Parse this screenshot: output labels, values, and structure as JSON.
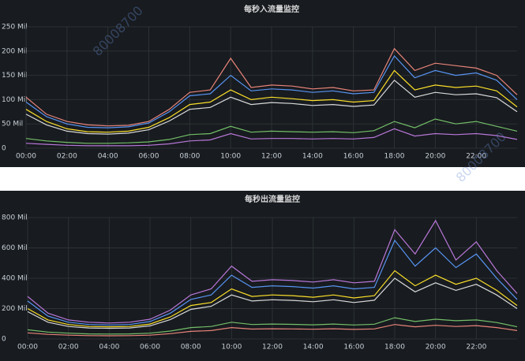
{
  "chart_data": [
    {
      "type": "line",
      "title": "每秒入流量监控",
      "x": [
        0,
        1,
        2,
        3,
        4,
        5,
        6,
        7,
        8,
        9,
        10,
        11,
        12,
        13,
        14,
        15,
        16,
        17,
        18,
        19,
        20,
        21,
        22,
        23,
        24
      ],
      "xlim": [
        0,
        24
      ],
      "xticks": [
        {
          "value": 0,
          "label": "00:00"
        },
        {
          "value": 2,
          "label": "02:00"
        },
        {
          "value": 4,
          "label": "04:00"
        },
        {
          "value": 6,
          "label": "06:00"
        },
        {
          "value": 8,
          "label": "08:00"
        },
        {
          "value": 10,
          "label": "10:00"
        },
        {
          "value": 12,
          "label": "12:00"
        },
        {
          "value": 14,
          "label": "14:00"
        },
        {
          "value": 16,
          "label": "16:00"
        },
        {
          "value": 18,
          "label": "18:00"
        },
        {
          "value": 20,
          "label": "20:00"
        },
        {
          "value": 22,
          "label": "22:00"
        }
      ],
      "ylim": [
        0,
        250
      ],
      "yticks": [
        0,
        {
          "value": 50,
          "label": "50 Mil"
        },
        {
          "value": 100,
          "label": "100 Mil"
        },
        {
          "value": 150,
          "label": "150 Mil"
        },
        {
          "value": 200,
          "label": "200 Mil"
        },
        {
          "value": 250,
          "label": "250 Mil"
        }
      ],
      "grid": true,
      "series": [
        {
          "color": "#e8847a",
          "values": [
            105,
            70,
            55,
            48,
            46,
            47,
            55,
            80,
            115,
            120,
            185,
            125,
            130,
            128,
            122,
            125,
            118,
            120,
            205,
            160,
            175,
            170,
            165,
            150,
            110
          ]
        },
        {
          "color": "#5794f2",
          "values": [
            95,
            65,
            50,
            43,
            42,
            44,
            52,
            75,
            108,
            112,
            150,
            118,
            122,
            120,
            115,
            118,
            112,
            115,
            190,
            145,
            160,
            150,
            155,
            140,
            100
          ]
        },
        {
          "color": "#fade2a",
          "values": [
            80,
            55,
            40,
            34,
            33,
            35,
            43,
            63,
            90,
            95,
            120,
            100,
            105,
            102,
            98,
            100,
            95,
            98,
            160,
            120,
            130,
            125,
            128,
            118,
            85
          ]
        },
        {
          "color": "#d8d9da",
          "values": [
            70,
            48,
            35,
            30,
            29,
            31,
            38,
            56,
            80,
            84,
            105,
            90,
            94,
            92,
            88,
            90,
            86,
            89,
            140,
            105,
            115,
            110,
            112,
            104,
            75
          ]
        },
        {
          "color": "#73bf69",
          "values": [
            20,
            15,
            12,
            10,
            10,
            11,
            13,
            18,
            28,
            30,
            45,
            33,
            35,
            34,
            33,
            34,
            32,
            36,
            55,
            42,
            60,
            50,
            55,
            45,
            35
          ]
        },
        {
          "color": "#b877d9",
          "values": [
            10,
            8,
            6,
            5,
            5,
            5,
            6,
            9,
            15,
            17,
            30,
            19,
            20,
            20,
            19,
            20,
            19,
            22,
            40,
            25,
            30,
            28,
            30,
            26,
            18
          ]
        }
      ]
    },
    {
      "type": "line",
      "title": "每秒出流量监控",
      "x": [
        0,
        1,
        2,
        3,
        4,
        5,
        6,
        7,
        8,
        9,
        10,
        11,
        12,
        13,
        14,
        15,
        16,
        17,
        18,
        19,
        20,
        21,
        22,
        23,
        24
      ],
      "xlim": [
        0,
        24
      ],
      "xticks": [
        {
          "value": 0,
          "label": "00:00"
        },
        {
          "value": 2,
          "label": "02:00"
        },
        {
          "value": 4,
          "label": "04:00"
        },
        {
          "value": 6,
          "label": "06:00"
        },
        {
          "value": 8,
          "label": "08:00"
        },
        {
          "value": 10,
          "label": "10:00"
        },
        {
          "value": 12,
          "label": "12:00"
        },
        {
          "value": 14,
          "label": "14:00"
        },
        {
          "value": 16,
          "label": "16:00"
        },
        {
          "value": 18,
          "label": "18:00"
        },
        {
          "value": 20,
          "label": "20:00"
        },
        {
          "value": 22,
          "label": "22:00"
        }
      ],
      "ylim": [
        0,
        800
      ],
      "yticks": [
        0,
        {
          "value": 200,
          "label": "200 Mil"
        },
        {
          "value": 400,
          "label": "400 Mil"
        },
        {
          "value": 600,
          "label": "600 Mil"
        },
        {
          "value": 800,
          "label": "800 Mil"
        }
      ],
      "grid": true,
      "series": [
        {
          "color": "#b877d9",
          "values": [
            280,
            170,
            125,
            110,
            105,
            110,
            130,
            190,
            290,
            330,
            480,
            380,
            390,
            385,
            375,
            390,
            370,
            380,
            720,
            560,
            780,
            520,
            640,
            450,
            300
          ]
        },
        {
          "color": "#5794f2",
          "values": [
            250,
            150,
            110,
            95,
            92,
            95,
            115,
            170,
            260,
            290,
            420,
            340,
            350,
            345,
            335,
            350,
            330,
            340,
            650,
            480,
            600,
            470,
            560,
            400,
            260
          ]
        },
        {
          "color": "#fade2a",
          "values": [
            200,
            125,
            95,
            82,
            80,
            82,
            98,
            145,
            220,
            240,
            330,
            280,
            290,
            285,
            275,
            290,
            270,
            285,
            450,
            350,
            420,
            360,
            400,
            320,
            220
          ]
        },
        {
          "color": "#d8d9da",
          "values": [
            180,
            110,
            82,
            72,
            70,
            72,
            86,
            128,
            195,
            215,
            290,
            250,
            258,
            254,
            245,
            258,
            240,
            255,
            400,
            310,
            370,
            320,
            360,
            290,
            200
          ]
        },
        {
          "color": "#73bf69",
          "values": [
            60,
            45,
            38,
            33,
            32,
            33,
            38,
            52,
            75,
            82,
            110,
            95,
            98,
            96,
            93,
            98,
            92,
            97,
            140,
            115,
            130,
            120,
            125,
            108,
            80
          ]
        },
        {
          "color": "#e8847a",
          "values": [
            40,
            30,
            25,
            22,
            21,
            22,
            25,
            35,
            50,
            55,
            75,
            65,
            67,
            66,
            64,
            67,
            63,
            66,
            95,
            80,
            90,
            82,
            88,
            75,
            55
          ]
        }
      ]
    }
  ],
  "watermark": "80008700"
}
